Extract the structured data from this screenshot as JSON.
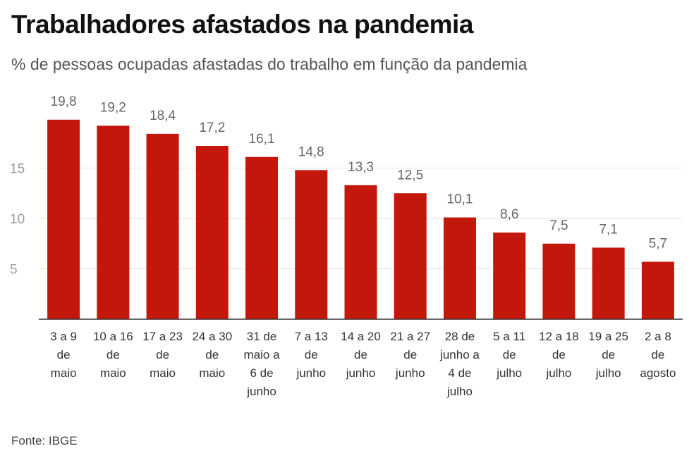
{
  "title": "Trabalhadores afastados na pandemia",
  "subtitle": "% de pessoas ocupadas afastadas do trabalho em função da pandemia",
  "source": "Fonte: IBGE",
  "chart_data": {
    "type": "bar",
    "categories": [
      [
        "3 a 9",
        "de",
        "maio"
      ],
      [
        "10 a 16",
        "de",
        "maio"
      ],
      [
        "17 a 23",
        "de",
        "maio"
      ],
      [
        "24 a 30",
        "de",
        "maio"
      ],
      [
        "31 de",
        "maio a",
        "6 de",
        "junho"
      ],
      [
        "7 a 13",
        "de",
        "junho"
      ],
      [
        "14 a 20",
        "de",
        "junho"
      ],
      [
        "21 a 27",
        "de",
        "junho"
      ],
      [
        "28 de",
        "junho a",
        "4 de",
        "julho"
      ],
      [
        "5 a 11",
        "de",
        "julho"
      ],
      [
        "12 a 18",
        "de",
        "julho"
      ],
      [
        "19 a 25",
        "de",
        "julho"
      ],
      [
        "2 a 8",
        "de",
        "agosto"
      ]
    ],
    "values": [
      19.8,
      19.2,
      18.4,
      17.2,
      16.1,
      14.8,
      13.3,
      12.5,
      10.1,
      8.6,
      7.5,
      7.1,
      5.7
    ],
    "value_labels": [
      "19,8",
      "19,2",
      "18,4",
      "17,2",
      "16,1",
      "14,8",
      "13,3",
      "12,5",
      "10,1",
      "8,6",
      "7,5",
      "7,1",
      "5,7"
    ],
    "yticks": [
      5,
      10,
      15
    ],
    "ylim": [
      0,
      20
    ],
    "grid": true,
    "bar_color": "#c4170c"
  }
}
